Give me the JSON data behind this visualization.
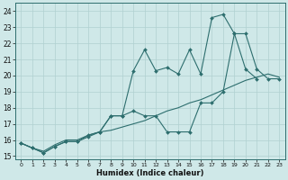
{
  "xlabel": "Humidex (Indice chaleur)",
  "xlim": [
    -0.5,
    23.5
  ],
  "ylim": [
    14.8,
    24.5
  ],
  "yticks": [
    15,
    16,
    17,
    18,
    19,
    20,
    21,
    22,
    23,
    24
  ],
  "xticks": [
    0,
    1,
    2,
    3,
    4,
    5,
    6,
    7,
    8,
    9,
    10,
    11,
    12,
    13,
    14,
    15,
    16,
    17,
    18,
    19,
    20,
    21,
    22,
    23
  ],
  "background_color": "#cfe8e8",
  "grid_color": "#b0d0d0",
  "line_color": "#2d6e6e",
  "line1_x": [
    0,
    1,
    2,
    3,
    4,
    5,
    6,
    7,
    8,
    9,
    10,
    11,
    12,
    13,
    14,
    15,
    16,
    17,
    18,
    19,
    20,
    21
  ],
  "line1_y": [
    15.8,
    15.5,
    15.2,
    15.6,
    15.9,
    15.9,
    16.3,
    16.5,
    17.5,
    17.5,
    20.3,
    21.6,
    20.3,
    20.5,
    20.1,
    21.6,
    20.1,
    23.6,
    23.8,
    22.6,
    20.4,
    19.8
  ],
  "line2_x": [
    0,
    1,
    2,
    3,
    4,
    5,
    6,
    7,
    8,
    9,
    10,
    11,
    12,
    13,
    14,
    15,
    16,
    17,
    18,
    19,
    20,
    21,
    22,
    23
  ],
  "line2_y": [
    15.8,
    15.5,
    15.2,
    15.6,
    15.9,
    15.9,
    16.2,
    16.5,
    17.5,
    17.5,
    17.8,
    17.5,
    17.5,
    16.5,
    16.5,
    16.5,
    18.3,
    18.3,
    19.0,
    22.6,
    22.6,
    20.4,
    19.8,
    19.8
  ],
  "line3_x": [
    0,
    1,
    2,
    3,
    4,
    5,
    6,
    7,
    8,
    9,
    10,
    11,
    12,
    13,
    14,
    15,
    16,
    17,
    18,
    19,
    20,
    21,
    22,
    23
  ],
  "line3_y": [
    15.8,
    15.5,
    15.3,
    15.7,
    16.0,
    16.0,
    16.3,
    16.5,
    16.6,
    16.8,
    17.0,
    17.2,
    17.5,
    17.8,
    18.0,
    18.3,
    18.5,
    18.8,
    19.1,
    19.4,
    19.7,
    19.9,
    20.1,
    19.9
  ]
}
